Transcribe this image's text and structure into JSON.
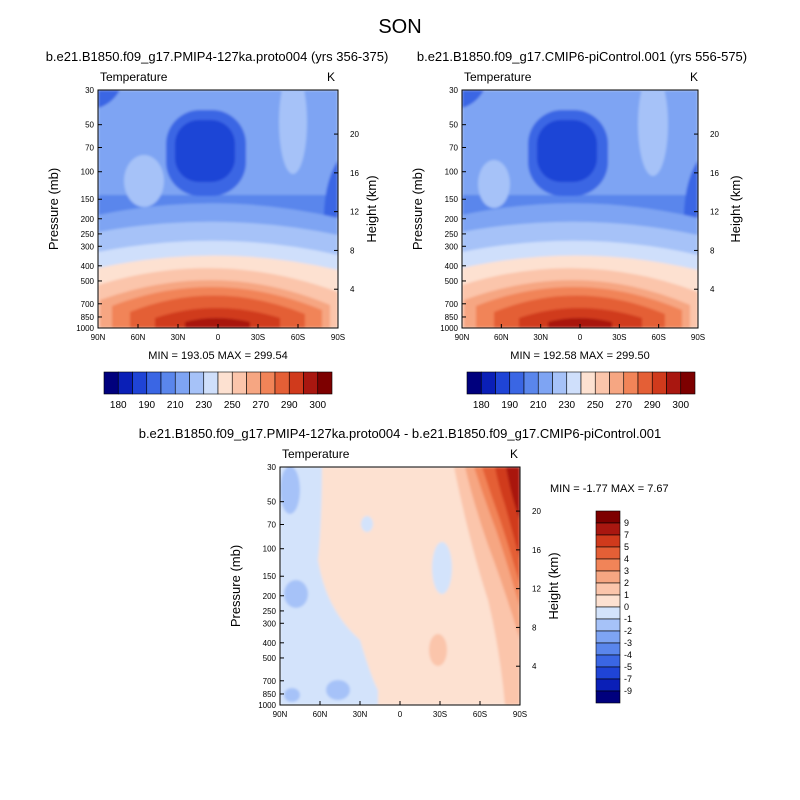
{
  "figure": {
    "title": "SON"
  },
  "colors": {
    "abs_scale": [
      "#00007d",
      "#0a1fb7",
      "#1f44d6",
      "#3a66e4",
      "#5a86ec",
      "#7ea4f3",
      "#a6c2f8",
      "#cfdffb",
      "#fde1d1",
      "#fbc5ab",
      "#f6a682",
      "#f18458",
      "#e45f36",
      "#d03a1c",
      "#a91710",
      "#7d0000"
    ],
    "diff_scale": [
      "#00007d",
      "#0a1fb7",
      "#1f44d6",
      "#3a66e4",
      "#5a86ec",
      "#7ea4f3",
      "#a6c2f8",
      "#d3e3fb",
      "#fde1d1",
      "#fbc5ab",
      "#f6a682",
      "#f18458",
      "#e45f36",
      "#d03a1c",
      "#a91710",
      "#7d0000"
    ]
  },
  "chart_data": [
    {
      "type": "heatmap",
      "title": "b.e21.B1850.f09_g17.PMIP4-127ka.proto004 (yrs 356-375)",
      "variable": "Temperature",
      "units": "K",
      "xlabel": "",
      "ylabel": "Pressure (mb)",
      "right_label": "Height (km)",
      "x_ticks": [
        "90N",
        "60N",
        "30N",
        "0",
        "30S",
        "60S",
        "90S"
      ],
      "y_ticks": [
        30,
        50,
        70,
        100,
        150,
        200,
        250,
        300,
        400,
        500,
        700,
        850,
        1000
      ],
      "height_ticks": [
        20,
        16,
        12,
        8,
        4
      ],
      "min": "193.05",
      "max": "299.54",
      "stats_label": "MIN = 193.05  MAX = 299.54",
      "colorbar_ticks": [
        "180",
        "190",
        "210",
        "230",
        "250",
        "270",
        "290",
        "300"
      ]
    },
    {
      "type": "heatmap",
      "title": "b.e21.B1850.f09_g17.CMIP6-piControl.001 (yrs 556-575)",
      "variable": "Temperature",
      "units": "K",
      "xlabel": "",
      "ylabel": "Pressure (mb)",
      "right_label": "Height (km)",
      "x_ticks": [
        "90N",
        "60N",
        "30N",
        "0",
        "30S",
        "60S",
        "90S"
      ],
      "y_ticks": [
        30,
        50,
        70,
        100,
        150,
        200,
        250,
        300,
        400,
        500,
        700,
        850,
        1000
      ],
      "height_ticks": [
        20,
        16,
        12,
        8,
        4
      ],
      "min": "192.58",
      "max": "299.50",
      "stats_label": "MIN = 192.58  MAX = 299.50",
      "colorbar_ticks": [
        "180",
        "190",
        "210",
        "230",
        "250",
        "270",
        "290",
        "300"
      ]
    },
    {
      "type": "heatmap",
      "title": "b.e21.B1850.f09_g17.PMIP4-127ka.proto004 - b.e21.B1850.f09_g17.CMIP6-piControl.001",
      "variable": "Temperature",
      "units": "K",
      "xlabel": "",
      "ylabel": "Pressure (mb)",
      "right_label": "Height (km)",
      "x_ticks": [
        "90N",
        "60N",
        "30N",
        "0",
        "30S",
        "60S",
        "90S"
      ],
      "y_ticks": [
        30,
        50,
        70,
        100,
        150,
        200,
        250,
        300,
        400,
        500,
        700,
        850,
        1000
      ],
      "height_ticks": [
        20,
        16,
        12,
        8,
        4
      ],
      "min": "-1.77",
      "max": "7.67",
      "stats_label": "MIN =  -1.77  MAX =   7.67",
      "colorbar_ticks": [
        "9",
        "7",
        "5",
        "4",
        "3",
        "2",
        "1",
        "0",
        "-1",
        "-2",
        "-3",
        "-4",
        "-5",
        "-7",
        "-9"
      ]
    }
  ]
}
